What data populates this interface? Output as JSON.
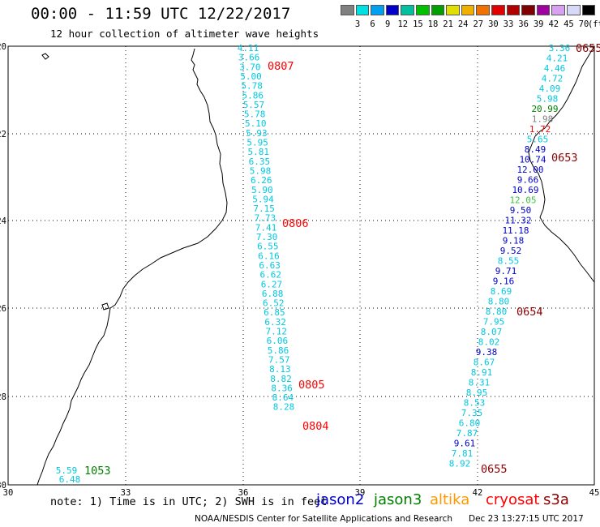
{
  "header": {
    "title": "00:00 - 11:59 UTC 12/22/2017",
    "subtitle": "12 hour collection of altimeter wave heights"
  },
  "colorbar": {
    "unit_label": "(ft)",
    "labels": [
      "3",
      "6",
      "9",
      "12",
      "15",
      "18",
      "21",
      "24",
      "27",
      "30",
      "33",
      "36",
      "39",
      "42",
      "45",
      "70"
    ],
    "colors": [
      "#808080",
      "#00e0e0",
      "#00a0f0",
      "#0000c8",
      "#00c0a0",
      "#00c000",
      "#00a000",
      "#e0e000",
      "#f0b000",
      "#f07000",
      "#e00000",
      "#b00000",
      "#800000",
      "#a000a0",
      "#d8a0f0",
      "#d8d8f8",
      "#000000"
    ]
  },
  "axes": {
    "x_ticks": [
      "30",
      "33",
      "36",
      "39",
      "42",
      "45"
    ],
    "y_ticks": [
      "-20",
      "-22",
      "-24",
      "-26",
      "-28",
      "-30"
    ]
  },
  "colors": {
    "cyan": "#00c8e0",
    "blue": "#0000c8",
    "green": "#008000",
    "gray": "#808080",
    "red": "#ff0000",
    "darkred": "#8b0000",
    "orange": "#ff9900",
    "lightgreen": "#40c040",
    "coast": "#000000"
  },
  "tracks": {
    "track_a": [
      {
        "v": "4.11",
        "c": "cyan"
      },
      {
        "v": "3.66",
        "c": "cyan"
      },
      {
        "v": "3.70",
        "c": "cyan"
      },
      {
        "v": "5.00",
        "c": "cyan"
      },
      {
        "v": "5.78",
        "c": "cyan"
      },
      {
        "v": "5.86",
        "c": "cyan"
      },
      {
        "v": "5.57",
        "c": "cyan"
      },
      {
        "v": "5.78",
        "c": "cyan"
      },
      {
        "v": "5.10",
        "c": "cyan"
      },
      {
        "v": "5.93",
        "c": "cyan"
      },
      {
        "v": "5.95",
        "c": "cyan"
      },
      {
        "v": "5.81",
        "c": "cyan"
      },
      {
        "v": "6.35",
        "c": "cyan"
      },
      {
        "v": "5.98",
        "c": "cyan"
      },
      {
        "v": "6.26",
        "c": "cyan"
      },
      {
        "v": "5.90",
        "c": "cyan"
      },
      {
        "v": "5.94",
        "c": "cyan"
      },
      {
        "v": "7.15",
        "c": "cyan"
      },
      {
        "v": "7.73",
        "c": "cyan"
      },
      {
        "v": "7.41",
        "c": "cyan"
      },
      {
        "v": "7.30",
        "c": "cyan"
      },
      {
        "v": "6.55",
        "c": "cyan"
      },
      {
        "v": "6.16",
        "c": "cyan"
      },
      {
        "v": "6.63",
        "c": "cyan"
      },
      {
        "v": "6.62",
        "c": "cyan"
      },
      {
        "v": "6.27",
        "c": "cyan"
      },
      {
        "v": "6.88",
        "c": "cyan"
      },
      {
        "v": "6.52",
        "c": "cyan"
      },
      {
        "v": "6.85",
        "c": "cyan"
      },
      {
        "v": "6.32",
        "c": "cyan"
      },
      {
        "v": "7.12",
        "c": "cyan"
      },
      {
        "v": "6.06",
        "c": "cyan"
      },
      {
        "v": "5.86",
        "c": "cyan"
      },
      {
        "v": "7.57",
        "c": "cyan"
      },
      {
        "v": "8.13",
        "c": "cyan"
      },
      {
        "v": "8.82",
        "c": "cyan"
      },
      {
        "v": "8.36",
        "c": "cyan"
      },
      {
        "v": "8.64",
        "c": "cyan"
      },
      {
        "v": "8.28",
        "c": "cyan"
      }
    ],
    "track_a_times": [
      {
        "t": "0807",
        "c": "red"
      },
      {
        "t": "0806",
        "c": "red"
      },
      {
        "t": "0805",
        "c": "red"
      },
      {
        "t": "0804",
        "c": "red"
      }
    ],
    "track_b": [
      {
        "v": "3.36",
        "c": "cyan"
      },
      {
        "v": "4.21",
        "c": "cyan"
      },
      {
        "v": "4.46",
        "c": "cyan"
      },
      {
        "v": "4.72",
        "c": "cyan"
      },
      {
        "v": "4.09",
        "c": "cyan"
      },
      {
        "v": "5.98",
        "c": "cyan"
      },
      {
        "v": "20.99",
        "c": "green"
      },
      {
        "v": "1.98",
        "c": "gray"
      },
      {
        "v": "1.72",
        "c": "red"
      },
      {
        "v": "5.65",
        "c": "cyan"
      },
      {
        "v": "8.49",
        "c": "blue"
      },
      {
        "v": "10.74",
        "c": "blue"
      },
      {
        "v": "12.00",
        "c": "blue"
      },
      {
        "v": "9.66",
        "c": "blue"
      },
      {
        "v": "10.69",
        "c": "blue"
      },
      {
        "v": "12.05",
        "c": "lightgreen"
      },
      {
        "v": "9.50",
        "c": "blue"
      },
      {
        "v": "11.32",
        "c": "blue"
      },
      {
        "v": "11.18",
        "c": "blue"
      },
      {
        "v": "9.18",
        "c": "blue"
      },
      {
        "v": "9.52",
        "c": "blue"
      },
      {
        "v": "8.55",
        "c": "cyan"
      },
      {
        "v": "9.71",
        "c": "blue"
      },
      {
        "v": "9.16",
        "c": "blue"
      },
      {
        "v": "8.69",
        "c": "cyan"
      },
      {
        "v": "8.80",
        "c": "cyan"
      },
      {
        "v": "8.80",
        "c": "cyan"
      },
      {
        "v": "7.95",
        "c": "cyan"
      },
      {
        "v": "8.07",
        "c": "cyan"
      },
      {
        "v": "8.02",
        "c": "cyan"
      },
      {
        "v": "9.38",
        "c": "blue"
      },
      {
        "v": "8.67",
        "c": "cyan"
      },
      {
        "v": "8.91",
        "c": "cyan"
      },
      {
        "v": "8.31",
        "c": "cyan"
      },
      {
        "v": "8.95",
        "c": "cyan"
      },
      {
        "v": "8.53",
        "c": "cyan"
      },
      {
        "v": "7.35",
        "c": "cyan"
      },
      {
        "v": "6.80",
        "c": "cyan"
      },
      {
        "v": "7.87",
        "c": "cyan"
      },
      {
        "v": "9.61",
        "c": "blue"
      },
      {
        "v": "7.81",
        "c": "cyan"
      },
      {
        "v": "8.92",
        "c": "cyan"
      }
    ],
    "track_b_times": [
      {
        "t": "0655",
        "c": "darkred"
      },
      {
        "t": "0653",
        "c": "darkred"
      },
      {
        "t": "0654",
        "c": "darkred"
      },
      {
        "t": "0655",
        "c": "darkred"
      }
    ],
    "track_c": [
      {
        "v": "5.59",
        "c": "cyan"
      },
      {
        "v": "6.48",
        "c": "cyan"
      }
    ],
    "track_c_time": {
      "t": "1053",
      "c": "green"
    }
  },
  "footer": {
    "note": "note: 1) Time is in UTC; 2) SWH is in feet",
    "satellites": [
      {
        "name": "jason2",
        "color": "#0000c8"
      },
      {
        "name": "jason3",
        "color": "#008000"
      },
      {
        "name": "altika",
        "color": "#ff9900"
      },
      {
        "name": "cryosat",
        "color": "#ff0000"
      },
      {
        "name": "s3a",
        "color": "#8b0000"
      }
    ],
    "credit": "NOAA/NESDIS Center for Satellite Applications and Research",
    "timestamp": "Dec 23 13:27:15 UTC 2017"
  }
}
